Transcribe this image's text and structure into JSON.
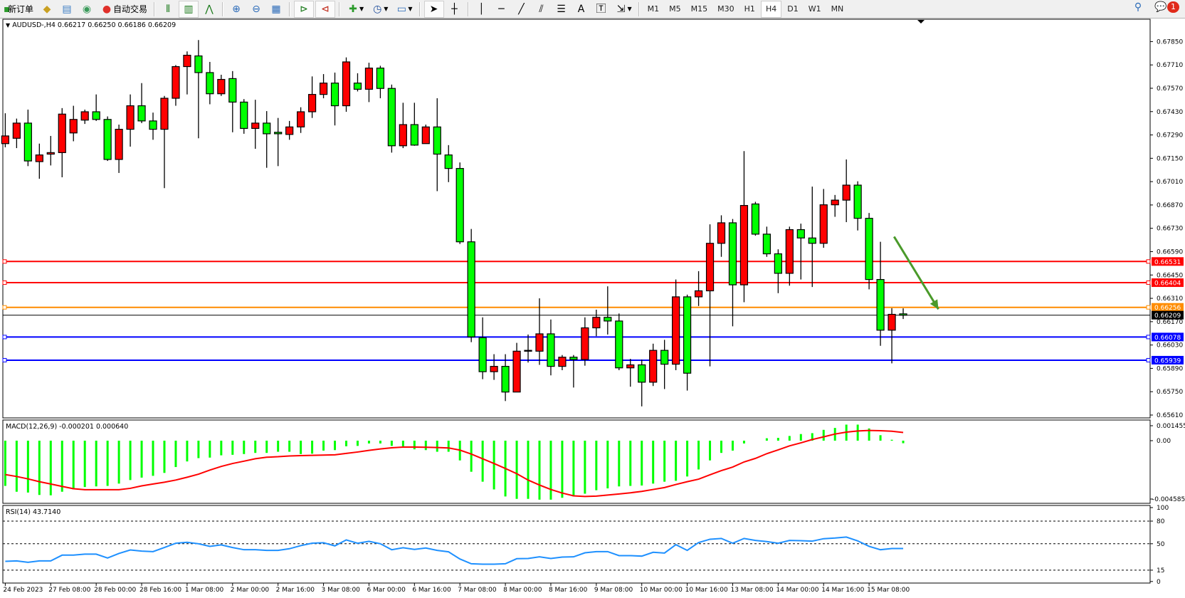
{
  "toolbar": {
    "new_order": "新订单",
    "auto_trading": "自动交易",
    "icons": [
      "new-order-icon",
      "market-watch-icon",
      "navigator-icon",
      "signals-icon",
      "auto-trading-icon",
      "bar-chart-icon",
      "candlestick-icon",
      "line-chart-icon",
      "zoom-in-icon",
      "zoom-out-icon",
      "tile-windows-icon",
      "auto-scroll-icon",
      "chart-shift-icon",
      "indicators-icon",
      "periods-icon",
      "templates-icon",
      "cursor-icon",
      "crosshair-icon",
      "vertical-line-icon",
      "horizontal-line-icon",
      "trendline-icon",
      "equidistant-channel-icon",
      "fibonacci-icon",
      "text-icon",
      "text-label-icon",
      "arrows-icon"
    ],
    "timeframes": [
      "M1",
      "M5",
      "M15",
      "M30",
      "H1",
      "H4",
      "D1",
      "W1",
      "MN"
    ],
    "active_timeframe": "H4",
    "notification_count": "1"
  },
  "chart": {
    "header": "AUDUSD-,H4  0.66217 0.66250 0.66186 0.66209",
    "symbol": "AUDUSD-",
    "timeframe": "H4",
    "colors": {
      "bull": "#ff0000",
      "bear": "#00ff00",
      "outline": "#000000"
    }
  },
  "chart_data": [
    {
      "type": "candlestick",
      "title": "AUDUSD-,H4",
      "ylim": [
        0.6559,
        0.679
      ],
      "y_ticks": [
        "0.67850",
        "0.67710",
        "0.67570",
        "0.67430",
        "0.67290",
        "0.67150",
        "0.67010",
        "0.66870",
        "0.66730",
        "0.66590",
        "0.66450",
        "0.66310",
        "0.66170",
        "0.66030",
        "0.65890",
        "0.65750",
        "0.65610"
      ],
      "x_labels": [
        "24 Feb 2023",
        "27 Feb 08:00",
        "28 Feb 00:00",
        "28 Feb 16:00",
        "1 Mar 08:00",
        "2 Mar 00:00",
        "2 Mar 16:00",
        "3 Mar 08:00",
        "6 Mar 00:00",
        "6 Mar 16:00",
        "7 Mar 08:00",
        "8 Mar 00:00",
        "8 Mar 16:00",
        "9 Mar 08:00",
        "10 Mar 00:00",
        "10 Mar 16:00",
        "13 Mar 08:00",
        "14 Mar 00:00",
        "14 Mar 16:00",
        "15 Mar 08:00"
      ],
      "x_label_every_bars": 4,
      "ohlc": [
        [
          0.67238,
          0.6742,
          0.67216,
          0.67284
        ],
        [
          0.6727,
          0.67388,
          0.67211,
          0.67361
        ],
        [
          0.67361,
          0.67442,
          0.67103,
          0.67134
        ],
        [
          0.6713,
          0.67238,
          0.67027,
          0.6717
        ],
        [
          0.67175,
          0.67284,
          0.67107,
          0.67184
        ],
        [
          0.67184,
          0.67451,
          0.67036,
          0.67415
        ],
        [
          0.67302,
          0.67465,
          0.67252,
          0.67383
        ],
        [
          0.67379,
          0.67442,
          0.67356,
          0.67429
        ],
        [
          0.67429,
          0.67533,
          0.67374,
          0.67383
        ],
        [
          0.67383,
          0.67401,
          0.67134,
          0.67143
        ],
        [
          0.67143,
          0.67352,
          0.67062,
          0.67324
        ],
        [
          0.67324,
          0.67533,
          0.6722,
          0.67465
        ],
        [
          0.67465,
          0.67601,
          0.67361,
          0.67374
        ],
        [
          0.67374,
          0.67424,
          0.67261,
          0.67324
        ],
        [
          0.67324,
          0.67524,
          0.66971,
          0.6751
        ],
        [
          0.6751,
          0.67709,
          0.67465,
          0.677
        ],
        [
          0.677,
          0.67791,
          0.67533,
          0.67768
        ],
        [
          0.67764,
          0.67859,
          0.6727,
          0.67664
        ],
        [
          0.67664,
          0.67728,
          0.67474,
          0.67537
        ],
        [
          0.67537,
          0.67651,
          0.67524,
          0.67623
        ],
        [
          0.67628,
          0.67673,
          0.67306,
          0.67487
        ],
        [
          0.67487,
          0.67505,
          0.67297,
          0.67329
        ],
        [
          0.67329,
          0.67501,
          0.67207,
          0.67361
        ],
        [
          0.67361,
          0.67433,
          0.67093,
          0.67297
        ],
        [
          0.67306,
          0.67392,
          0.67103,
          0.67297
        ],
        [
          0.67293,
          0.67374,
          0.67261,
          0.67338
        ],
        [
          0.67338,
          0.67456,
          0.67302,
          0.67429
        ],
        [
          0.67429,
          0.67641,
          0.67392,
          0.67533
        ],
        [
          0.67533,
          0.67655,
          0.6751,
          0.67601
        ],
        [
          0.67601,
          0.67664,
          0.67347,
          0.67465
        ],
        [
          0.67465,
          0.67755,
          0.67429,
          0.67728
        ],
        [
          0.67601,
          0.6766,
          0.67551,
          0.67564
        ],
        [
          0.67564,
          0.67723,
          0.67487,
          0.67691
        ],
        [
          0.67691,
          0.67705,
          0.6751,
          0.67569
        ],
        [
          0.67569,
          0.67592,
          0.67184,
          0.67225
        ],
        [
          0.67225,
          0.67483,
          0.67211,
          0.67352
        ],
        [
          0.67352,
          0.67483,
          0.67225,
          0.67229
        ],
        [
          0.67238,
          0.67352,
          0.67238,
          0.67338
        ],
        [
          0.67338,
          0.6751,
          0.66953,
          0.67175
        ],
        [
          0.6717,
          0.67229,
          0.67007,
          0.67089
        ],
        [
          0.67089,
          0.67125,
          0.66636,
          0.66649
        ],
        [
          0.66649,
          0.66726,
          0.66047,
          0.66079
        ],
        [
          0.66074,
          0.66196,
          0.65825,
          0.6587
        ],
        [
          0.6587,
          0.65975,
          0.65821,
          0.65902
        ],
        [
          0.65902,
          0.65975,
          0.65694,
          0.65748
        ],
        [
          0.65748,
          0.66043,
          0.65748,
          0.65993
        ],
        [
          0.65993,
          0.66093,
          0.65925,
          0.65998
        ],
        [
          0.65993,
          0.6631,
          0.65911,
          0.66097
        ],
        [
          0.66097,
          0.66183,
          0.65848,
          0.65902
        ],
        [
          0.65902,
          0.6597,
          0.65879,
          0.65957
        ],
        [
          0.65957,
          0.6597,
          0.65775,
          0.65943
        ],
        [
          0.65943,
          0.66196,
          0.65906,
          0.66133
        ],
        [
          0.66133,
          0.66242,
          0.66083,
          0.66196
        ],
        [
          0.66196,
          0.66382,
          0.66093,
          0.66174
        ],
        [
          0.66174,
          0.66219,
          0.65879,
          0.65893
        ],
        [
          0.65893,
          0.65947,
          0.6578,
          0.65911
        ],
        [
          0.65911,
          0.65943,
          0.65662,
          0.65807
        ],
        [
          0.65807,
          0.66038,
          0.65784,
          0.65998
        ],
        [
          0.65998,
          0.66061,
          0.65766,
          0.65915
        ],
        [
          0.65915,
          0.66423,
          0.65879,
          0.66319
        ],
        [
          0.66319,
          0.66332,
          0.65757,
          0.65861
        ],
        [
          0.66319,
          0.66473,
          0.66264,
          0.66355
        ],
        [
          0.66355,
          0.66754,
          0.65902,
          0.6664
        ],
        [
          0.6664,
          0.66808,
          0.66559,
          0.66763
        ],
        [
          0.66763,
          0.66786,
          0.66142,
          0.66391
        ],
        [
          0.66391,
          0.67193,
          0.66287,
          0.66867
        ],
        [
          0.66876,
          0.66889,
          0.66686,
          0.66695
        ],
        [
          0.66695,
          0.6674,
          0.66559,
          0.66577
        ],
        [
          0.66577,
          0.66604,
          0.66341,
          0.6646
        ],
        [
          0.6646,
          0.6674,
          0.66386,
          0.66722
        ],
        [
          0.66722,
          0.66758,
          0.66423,
          0.66672
        ],
        [
          0.66672,
          0.6698,
          0.66378,
          0.6664
        ],
        [
          0.6664,
          0.66966,
          0.66613,
          0.66871
        ],
        [
          0.66871,
          0.6693,
          0.66799,
          0.66899
        ],
        [
          0.66899,
          0.67143,
          0.66767,
          0.66989
        ],
        [
          0.66989,
          0.67012,
          0.66717,
          0.6679
        ],
        [
          0.6679,
          0.66822,
          0.66364,
          0.66423
        ],
        [
          0.66423,
          0.66649,
          0.66025,
          0.66119
        ],
        [
          0.66119,
          0.66251,
          0.6592,
          0.66214
        ],
        [
          0.66217,
          0.6625,
          0.66186,
          0.66209
        ]
      ],
      "levels": [
        {
          "price": 0.66531,
          "label": "0.66531",
          "color": "#ff0000"
        },
        {
          "price": 0.66404,
          "label": "0.66404",
          "color": "#ff0000"
        },
        {
          "price": 0.66256,
          "label": "0.66256",
          "color": "#ff8c00"
        },
        {
          "price": 0.66209,
          "label": "0.66209",
          "color": "#000000",
          "thin": true
        },
        {
          "price": 0.66078,
          "label": "0.66078",
          "color": "#0000ff"
        },
        {
          "price": 0.65939,
          "label": "0.65939",
          "color": "#0000ff"
        }
      ],
      "annotation_arrow": {
        "color": "#4a9a2a",
        "from": {
          "bar": 78.2,
          "price": 0.6668
        },
        "to": {
          "bar": 82.1,
          "price": 0.66245
        }
      }
    },
    {
      "type": "bar+line",
      "title": "MACD(12,26,9) -0.000201 0.000640",
      "y_ticks": [
        "0.001455",
        "0.00",
        "-0.004585"
      ],
      "ylim": [
        -0.004585,
        0.001455
      ],
      "histogram_color": "#00ff00",
      "signal_color": "#ff0000",
      "macd": [
        -0.00355,
        -0.00401,
        -0.00407,
        -0.00426,
        -0.00429,
        -0.00401,
        -0.00383,
        -0.00364,
        -0.00359,
        -0.00355,
        -0.00337,
        -0.00309,
        -0.0029,
        -0.00276,
        -0.00253,
        -0.00207,
        -0.00163,
        -0.00137,
        -0.00133,
        -0.00115,
        -0.00111,
        -0.00105,
        -0.00096,
        -0.00096,
        -0.00087,
        -0.00087,
        -0.00105,
        -0.00102,
        -0.00078,
        -0.00074,
        -0.00044,
        -0.00041,
        -0.00022,
        -0.00022,
        -0.00041,
        -0.00044,
        -0.00068,
        -0.00074,
        -0.00087,
        -0.00087,
        -0.00155,
        -0.00244,
        -0.00322,
        -0.00383,
        -0.00438,
        -0.00457,
        -0.00457,
        -0.00463,
        -0.00463,
        -0.00448,
        -0.00438,
        -0.00416,
        -0.00389,
        -0.00374,
        -0.00359,
        -0.00355,
        -0.00352,
        -0.00337,
        -0.00322,
        -0.00315,
        -0.00281,
        -0.00226,
        -0.00155,
        -0.00096,
        -0.00078,
        -0.00022,
        0.0,
        0.00019,
        0.00022,
        0.00037,
        0.00052,
        0.00059,
        0.00085,
        0.001,
        0.00126,
        0.00126,
        0.00096,
        0.00043,
        7e-05,
        -0.000201
      ],
      "signal": [
        -0.00266,
        -0.00281,
        -0.003,
        -0.00322,
        -0.0034,
        -0.00359,
        -0.00377,
        -0.00385,
        -0.00385,
        -0.00385,
        -0.00385,
        -0.00374,
        -0.00355,
        -0.0034,
        -0.00326,
        -0.00309,
        -0.00287,
        -0.00263,
        -0.00231,
        -0.00202,
        -0.00179,
        -0.00161,
        -0.00142,
        -0.0013,
        -0.00126,
        -0.0012,
        -0.00117,
        -0.00115,
        -0.00113,
        -0.00111,
        -0.001,
        -0.00089,
        -0.00076,
        -0.00065,
        -0.00056,
        -0.0005,
        -0.0005,
        -0.00052,
        -0.00054,
        -0.00057,
        -0.00074,
        -0.00105,
        -0.00142,
        -0.00179,
        -0.00218,
        -0.00259,
        -0.00309,
        -0.00348,
        -0.00383,
        -0.00411,
        -0.00433,
        -0.00438,
        -0.00435,
        -0.00427,
        -0.00418,
        -0.00409,
        -0.00398,
        -0.00383,
        -0.00368,
        -0.00344,
        -0.00322,
        -0.00302,
        -0.00268,
        -0.00235,
        -0.00207,
        -0.00167,
        -0.00139,
        -0.00102,
        -0.00072,
        -0.00041,
        -0.00017,
        9e-05,
        0.0003,
        0.00052,
        0.00067,
        0.00076,
        0.0008,
        0.00078,
        0.00074,
        0.00064
      ]
    },
    {
      "type": "line",
      "title": "RSI(14) 43.7140",
      "y_ticks": [
        "100",
        "80",
        "50",
        "15",
        "0"
      ],
      "ylim": [
        0,
        100
      ],
      "levels": [
        80,
        50,
        15
      ],
      "line_color": "#1e90ff",
      "values": [
        26.7,
        27.3,
        25.4,
        27.3,
        27.3,
        34.9,
        34.9,
        36.2,
        36.2,
        31.1,
        37.1,
        41.8,
        40.3,
        39.6,
        45.0,
        50.7,
        51.9,
        50.0,
        46.5,
        48.5,
        45.0,
        42.1,
        42.1,
        41.2,
        41.2,
        43.4,
        47.5,
        50.7,
        51.3,
        47.2,
        55.1,
        50.7,
        53.2,
        50.0,
        42.1,
        44.7,
        42.5,
        44.4,
        41.2,
        39.3,
        29.8,
        23.5,
        22.9,
        22.9,
        23.5,
        30.2,
        30.5,
        32.7,
        30.5,
        32.4,
        32.7,
        38.0,
        39.6,
        39.6,
        34.3,
        34.3,
        33.6,
        38.7,
        37.7,
        48.8,
        41.2,
        51.6,
        56.0,
        57.0,
        50.7,
        57.0,
        54.4,
        52.9,
        50.7,
        54.4,
        54.1,
        53.5,
        56.7,
        57.6,
        58.9,
        53.8,
        46.6,
        42.1,
        43.7,
        43.714
      ]
    }
  ]
}
